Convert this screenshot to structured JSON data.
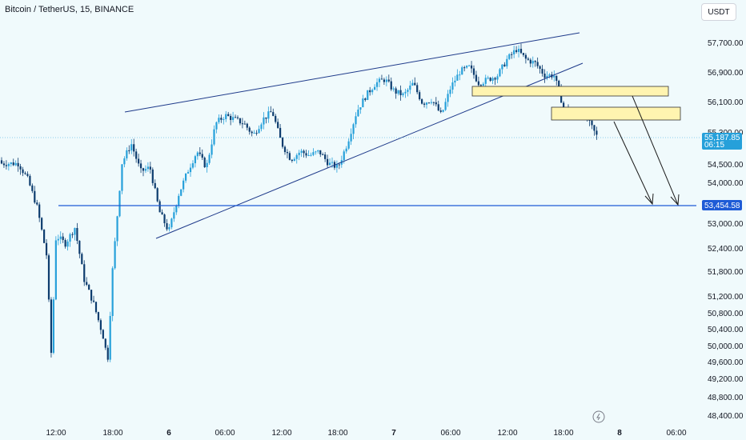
{
  "header": {
    "title": "Bitcoin / TetherUS, 15, BINANCE",
    "currency": "USDT"
  },
  "colors": {
    "background": "#f0fafc",
    "up": "#26a0da",
    "down": "#0d3c6e",
    "trendline": "#1e3a8a",
    "support": "#1e5bd6",
    "zone_fill": "#fff4b0",
    "zone_stroke": "#333333",
    "arrow": "#1a1a1a"
  },
  "chart_data": {
    "type": "candlestick",
    "symbol": "BTCUSDT",
    "timeframe": "15",
    "exchange": "BINANCE",
    "y_ticks": [
      "57,700.00",
      "56,900.00",
      "56,100.00",
      "55,300.00",
      "54,500.00",
      "54,000.00",
      "53,000.00",
      "52,400.00",
      "51,800.00",
      "51,200.00",
      "50,800.00",
      "50,400.00",
      "50,000.00",
      "49,600.00",
      "49,200.00",
      "48,800.00",
      "48,400.00"
    ],
    "x_ticks": [
      {
        "label": "12:00",
        "bold": false
      },
      {
        "label": "18:00",
        "bold": false
      },
      {
        "label": "6",
        "bold": true
      },
      {
        "label": "06:00",
        "bold": false
      },
      {
        "label": "12:00",
        "bold": false
      },
      {
        "label": "18:00",
        "bold": false
      },
      {
        "label": "7",
        "bold": true
      },
      {
        "label": "06:00",
        "bold": false
      },
      {
        "label": "12:00",
        "bold": false
      },
      {
        "label": "18:00",
        "bold": false
      },
      {
        "label": "8",
        "bold": true
      },
      {
        "label": "06:00",
        "bold": false
      }
    ],
    "current_price": "55,187.85",
    "countdown": "06:15",
    "support_level": "53,454.58",
    "annotations": [
      "rising wedge",
      "supply zone 1",
      "supply zone 2",
      "projection arrows to support"
    ],
    "price_path": [
      [
        "5 08:00",
        54700
      ],
      [
        "5 09:00",
        54300
      ],
      [
        "5 10:00",
        53600
      ],
      [
        "5 11:00",
        52400
      ],
      [
        "5 11:30",
        49900
      ],
      [
        "5 12:00",
        52900
      ],
      [
        "5 13:00",
        52700
      ],
      [
        "5 14:00",
        53100
      ],
      [
        "5 15:00",
        51800
      ],
      [
        "5 16:00",
        51200
      ],
      [
        "5 17:00",
        50400
      ],
      [
        "5 17:30",
        49800
      ],
      [
        "5 18:00",
        52000
      ],
      [
        "5 19:00",
        54700
      ],
      [
        "5 20:00",
        55200
      ],
      [
        "5 21:00",
        54500
      ],
      [
        "5 22:00",
        54600
      ],
      [
        "5 23:00",
        53500
      ],
      [
        "6 00:00",
        53000
      ],
      [
        "6 01:00",
        53900
      ],
      [
        "6 02:00",
        54500
      ],
      [
        "6 03:00",
        55000
      ],
      [
        "6 04:00",
        54600
      ],
      [
        "6 05:00",
        55700
      ],
      [
        "6 06:00",
        55900
      ],
      [
        "6 07:00",
        55800
      ],
      [
        "6 08:00",
        55700
      ],
      [
        "6 09:00",
        55400
      ],
      [
        "6 10:00",
        55800
      ],
      [
        "6 11:00",
        56000
      ],
      [
        "6 12:00",
        55200
      ],
      [
        "6 13:00",
        54800
      ],
      [
        "6 14:00",
        55000
      ],
      [
        "6 15:00",
        54900
      ],
      [
        "6 16:00",
        55000
      ],
      [
        "6 17:00",
        54700
      ],
      [
        "6 18:00",
        54600
      ],
      [
        "6 19:00",
        55200
      ],
      [
        "6 20:00",
        56000
      ],
      [
        "6 21:00",
        56400
      ],
      [
        "6 22:00",
        56700
      ],
      [
        "6 23:00",
        56800
      ],
      [
        "7 00:00",
        56500
      ],
      [
        "7 01:00",
        56400
      ],
      [
        "7 02:00",
        56700
      ],
      [
        "7 03:00",
        56200
      ],
      [
        "7 04:00",
        56300
      ],
      [
        "7 05:00",
        55900
      ],
      [
        "7 06:00",
        56600
      ],
      [
        "7 07:00",
        57000
      ],
      [
        "7 08:00",
        57100
      ],
      [
        "7 09:00",
        56700
      ],
      [
        "7 10:00",
        56800
      ],
      [
        "7 11:00",
        56900
      ],
      [
        "7 12:00",
        57300
      ],
      [
        "7 13:00",
        57550
      ],
      [
        "7 14:00",
        57300
      ],
      [
        "7 15:00",
        57200
      ],
      [
        "7 16:00",
        56900
      ],
      [
        "7 17:00",
        56900
      ],
      [
        "7 18:00",
        56100
      ],
      [
        "7 19:00",
        55900
      ],
      [
        "7 20:00",
        56000
      ],
      [
        "7 21:00",
        55600
      ],
      [
        "7 22:00",
        55200
      ]
    ]
  }
}
